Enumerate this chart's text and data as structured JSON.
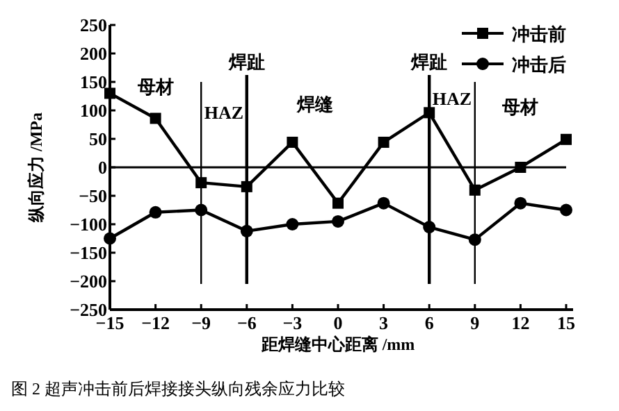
{
  "chart_data": {
    "type": "line",
    "xlabel": "距焊缝中心距离 /mm",
    "ylabel": "纵向应力 /MPa",
    "x": [
      -15,
      -12,
      -9,
      -6,
      -3,
      0,
      3,
      6,
      9,
      12,
      15
    ],
    "series": [
      {
        "name": "冲击前",
        "color": "#000000",
        "marker": "square",
        "values": [
          130,
          86,
          -27,
          -34,
          44,
          -63,
          44,
          96,
          -40,
          0,
          49
        ]
      },
      {
        "name": "冲击后",
        "color": "#000000",
        "marker": "circle",
        "values": [
          -125,
          -79,
          -75,
          -112,
          -100,
          -95,
          -63,
          -105,
          -127,
          -63,
          -75
        ]
      }
    ],
    "xlim": [
      -15,
      15
    ],
    "xticks": [
      -15,
      -12,
      -9,
      -6,
      -3,
      0,
      3,
      6,
      9,
      12,
      15
    ],
    "ylim": [
      -250,
      250
    ],
    "yticks": [
      -250,
      -200,
      -150,
      -100,
      -50,
      0,
      50,
      100,
      150,
      200,
      250
    ],
    "ref_lines": [
      {
        "axis": "y",
        "value": 0
      },
      {
        "axis": "x",
        "value": -9
      },
      {
        "axis": "x",
        "value": -6,
        "label": "焊趾"
      },
      {
        "axis": "x",
        "value": 6,
        "label": "焊趾"
      },
      {
        "axis": "x",
        "value": 9
      }
    ],
    "annotations": [
      "母材",
      "HAZ",
      "焊缝",
      "HAZ",
      "母材",
      "图 2  超声冲击前后焊接接头纵向残余应力比较"
    ],
    "legend": "top right",
    "grid": false,
    "line_style": "solid"
  }
}
